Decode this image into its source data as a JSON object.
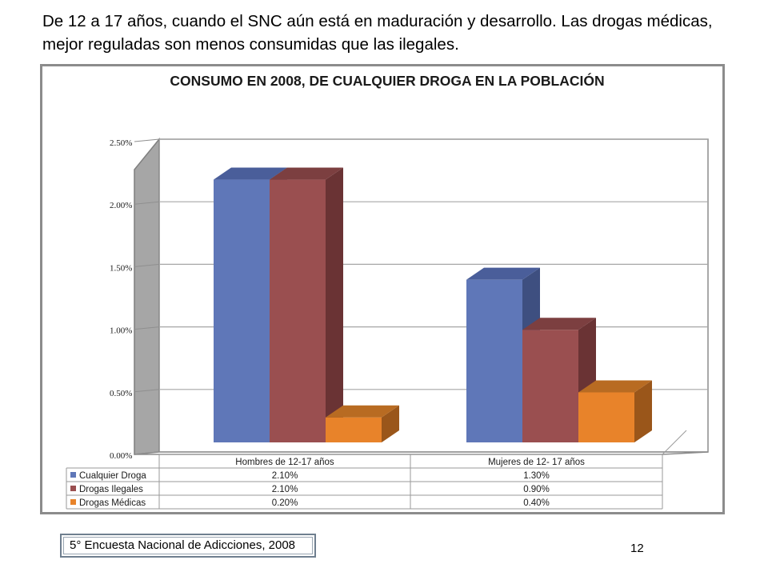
{
  "heading": "De 12 a 17 años, cuando el SNC aún está en maduración y desarrollo. Las drogas médicas, mejor reguladas son menos consumidas que las ilegales.",
  "source": "5° Encuesta Nacional de Adicciones, 2008",
  "page_number": "12",
  "chart_data": {
    "type": "bar",
    "title": "CONSUMO EN 2008, DE CUALQUIER  DROGA EN LA POBLACIÓN",
    "categories": [
      "Hombres de 12-17 años",
      "Mujeres de 12- 17 años"
    ],
    "series": [
      {
        "name": "Cualquier Droga",
        "values": [
          0.021,
          0.013
        ],
        "labels": [
          "2.10%",
          "1.30%"
        ],
        "color": "#5f77b8",
        "side": "#3e4f80",
        "top": "#4a5e9a"
      },
      {
        "name": "Drogas Ilegales",
        "values": [
          0.021,
          0.009
        ],
        "labels": [
          "2.10%",
          "0.90%"
        ],
        "color": "#9a4f50",
        "side": "#6a3334",
        "top": "#7c3f40"
      },
      {
        "name": "Drogas Médicas",
        "values": [
          0.002,
          0.004
        ],
        "labels": [
          "0.20%",
          "0.40%"
        ],
        "color": "#e8832a",
        "side": "#9a561a",
        "top": "#b86b22"
      }
    ],
    "ylim": [
      0,
      0.025
    ],
    "yticks": [
      "0.00%",
      "0.50%",
      "1.00%",
      "1.50%",
      "2.00%",
      "2.50%"
    ],
    "legend": "data-table-below"
  }
}
